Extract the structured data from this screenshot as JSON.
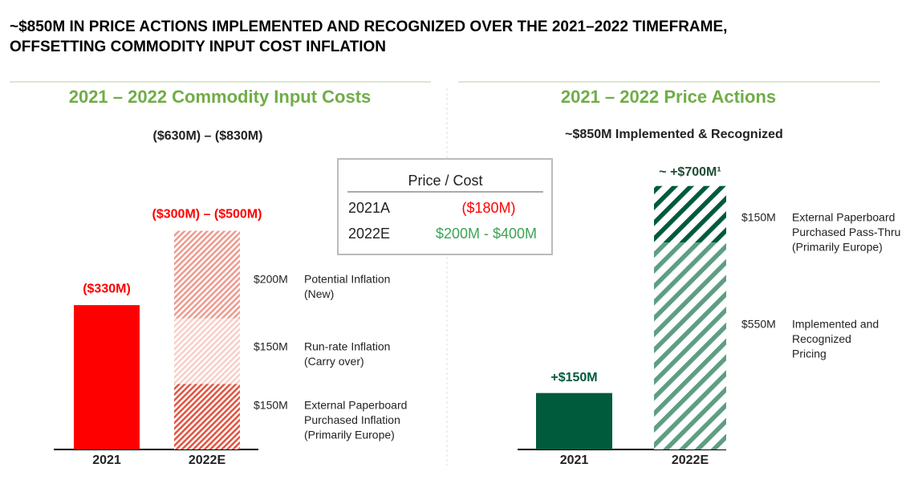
{
  "title": [
    "~$850M IN PRICE ACTIONS IMPLEMENTED AND RECOGNIZED OVER THE 2021–2022 TIMEFRAME,",
    "OFFSETTING COMMODITY INPUT COST INFLATION"
  ],
  "price_cost_table": {
    "header": "Price / Cost",
    "rows": [
      [
        "2021A",
        "($180M)"
      ],
      [
        "2022E",
        "$200M - $400M"
      ]
    ]
  },
  "chart_data": [
    {
      "type": "bar",
      "title": "2021 – 2022 Commodity Input Costs",
      "subtitle": "($630M) – ($830M)",
      "categories": [
        "2021",
        "2022E"
      ],
      "bar": {
        "value": 330,
        "value_label": "($330M)",
        "color": "#ff0000"
      },
      "stack": {
        "total_label": "($300M) –  ($500M)",
        "segments": [
          {
            "value": 150,
            "value_label": "$150M",
            "name": [
              "External Paperboard",
              "Purchased Inflation",
              "(Primarily Europe)"
            ],
            "color": "#e2533f"
          },
          {
            "value": 150,
            "value_label": "$150M",
            "name": [
              "Run-rate Inflation",
              "(Carry over)"
            ],
            "color": "#f7cfc8"
          },
          {
            "value": 200,
            "value_label": "$200M",
            "name": [
              "Potential Inflation",
              "(New)"
            ],
            "color": "#ee9a8e"
          }
        ]
      }
    },
    {
      "type": "bar",
      "title": "2021 – 2022 Price Actions",
      "subtitle": "~$850M Implemented & Recognized",
      "categories": [
        "2021",
        "2022E"
      ],
      "bar": {
        "value": 150,
        "value_label": "+$150M",
        "color": "#005a3c"
      },
      "stack": {
        "total_label": "~ +$700M¹",
        "segments": [
          {
            "value": 550,
            "value_label": "$550M",
            "name": [
              "Implemented and",
              "Recognized",
              "Pricing"
            ],
            "color": "#5e9e82"
          },
          {
            "value": 150,
            "value_label": "$150M",
            "name": [
              "External Paperboard",
              "Purchased Pass-Thru",
              "(Primarily Europe)"
            ],
            "color": "#005a3c"
          }
        ]
      }
    }
  ]
}
